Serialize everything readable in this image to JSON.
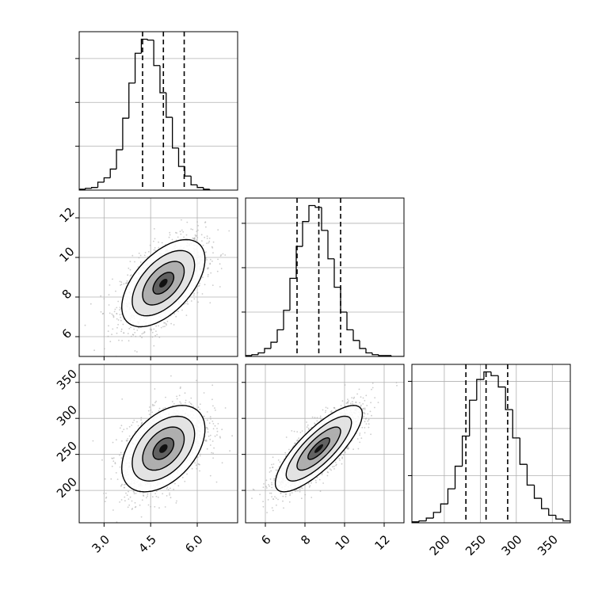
{
  "chart_data": [
    {
      "type": "bar",
      "panel": "hist-p0",
      "xlim": [
        2.2,
        7.3
      ],
      "quantiles": [
        4.24,
        4.91,
        5.58
      ],
      "bins_start": 2.2,
      "bin_width": 0.2,
      "counts": [
        1,
        2,
        3,
        9,
        14,
        24,
        46,
        82,
        122,
        156,
        172,
        171,
        142,
        111,
        83,
        48,
        27,
        16,
        6,
        3,
        1
      ],
      "yticks": [
        50,
        100,
        150
      ],
      "xticklabels": [],
      "yticklabels": []
    },
    {
      "type": "scatter",
      "panel": "joint-p0-p1",
      "xlim": [
        2.2,
        7.3
      ],
      "ylim": [
        5.0,
        13.0
      ],
      "center": [
        4.91,
        8.7
      ],
      "sd": [
        0.67,
        1.1
      ],
      "correlation": 0.55,
      "n_points": 1700,
      "contour_sigmas": [
        0.5,
        1.0,
        1.5,
        2.0
      ],
      "xticks": [
        3.0,
        4.5,
        6.0
      ],
      "yticks": [
        6,
        8,
        10,
        12
      ],
      "xticklabels": [],
      "yticklabels": [
        "6",
        "8",
        "10",
        "12"
      ]
    },
    {
      "type": "bar",
      "panel": "hist-p1",
      "xlim": [
        5.0,
        13.0
      ],
      "quantiles": [
        7.6,
        8.7,
        9.8
      ],
      "bins_start": 5.0,
      "bin_width": 0.32,
      "counts": [
        1,
        2,
        4,
        9,
        16,
        30,
        52,
        88,
        124,
        152,
        170,
        168,
        142,
        110,
        78,
        50,
        30,
        18,
        9,
        4,
        2,
        1,
        1,
        0,
        0
      ],
      "yticks": [
        50,
        100,
        150
      ],
      "xticklabels": [],
      "yticklabels": []
    },
    {
      "type": "scatter",
      "panel": "joint-p0-p2",
      "xlim": [
        2.2,
        7.3
      ],
      "ylim": [
        155,
        375
      ],
      "center": [
        4.91,
        258
      ],
      "sd": [
        0.67,
        30
      ],
      "correlation": 0.45,
      "n_points": 1700,
      "contour_sigmas": [
        0.5,
        1.0,
        1.5,
        2.0
      ],
      "xticks": [
        3.0,
        4.5,
        6.0
      ],
      "yticks": [
        200,
        250,
        300,
        350
      ],
      "xticklabels": [
        "3.0",
        "4.5",
        "6.0"
      ],
      "yticklabels": [
        "200",
        "250",
        "300",
        "350"
      ]
    },
    {
      "type": "scatter",
      "panel": "joint-p1-p2",
      "xlim": [
        5.0,
        13.0
      ],
      "ylim": [
        155,
        375
      ],
      "center": [
        8.7,
        258
      ],
      "sd": [
        1.1,
        30
      ],
      "correlation": 0.8,
      "n_points": 1700,
      "contour_sigmas": [
        0.5,
        1.0,
        1.5,
        2.0
      ],
      "xticks": [
        6,
        8,
        10,
        12
      ],
      "yticks": [
        200,
        250,
        300,
        350
      ],
      "xticklabels": [
        "6",
        "8",
        "10",
        "12"
      ],
      "yticklabels": []
    },
    {
      "type": "bar",
      "panel": "hist-p2",
      "xlim": [
        155,
        375
      ],
      "quantiles": [
        230,
        258,
        288
      ],
      "bins_start": 155,
      "bin_width": 10,
      "counts": [
        1,
        2,
        5,
        11,
        20,
        36,
        60,
        92,
        130,
        152,
        160,
        156,
        144,
        120,
        90,
        62,
        40,
        26,
        15,
        8,
        4,
        2
      ],
      "yticks": [
        50,
        100,
        150
      ],
      "xticklabels": [
        "200",
        "250",
        "300",
        "350"
      ],
      "xticks": [
        200,
        250,
        300,
        350
      ],
      "yticklabels": []
    }
  ],
  "style": {
    "line_color": "#000000",
    "grid_color": "#b0b0b0",
    "point_color": "#aaaaaa"
  }
}
